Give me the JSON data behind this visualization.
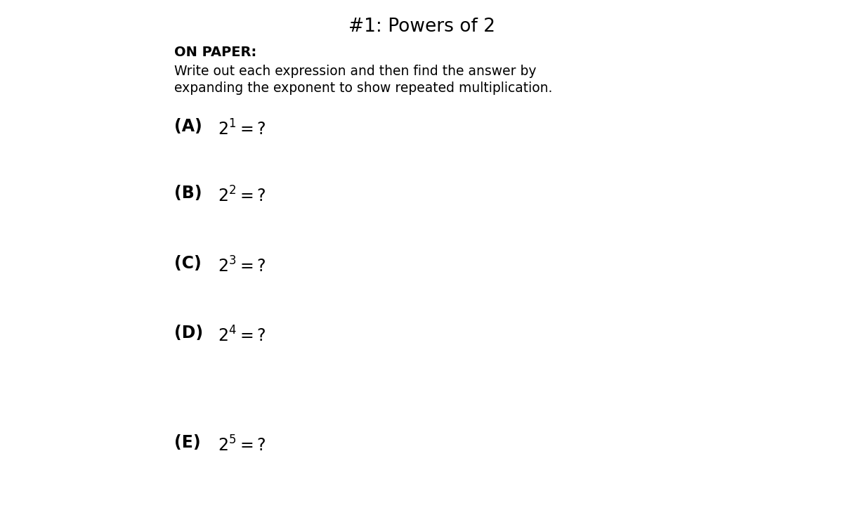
{
  "title": "#1: Powers of 2",
  "background_color": "#ffffff",
  "on_paper_label": "ON PAPER:",
  "instructions_line1": "Write out each expression and then find the answer by",
  "instructions_line2": "expanding the exponent to show repeated multiplication.",
  "questions": [
    {
      "label": "(A)",
      "exp": "1"
    },
    {
      "label": "(B)",
      "exp": "2"
    },
    {
      "label": "(C)",
      "exp": "3"
    },
    {
      "label": "(D)",
      "exp": "4"
    },
    {
      "label": "(E)",
      "exp": "5"
    }
  ],
  "title_fontsize": 19,
  "on_paper_fontsize": 14,
  "instructions_fontsize": 13.5,
  "question_fontsize": 17,
  "question_exp_fontsize": 12
}
